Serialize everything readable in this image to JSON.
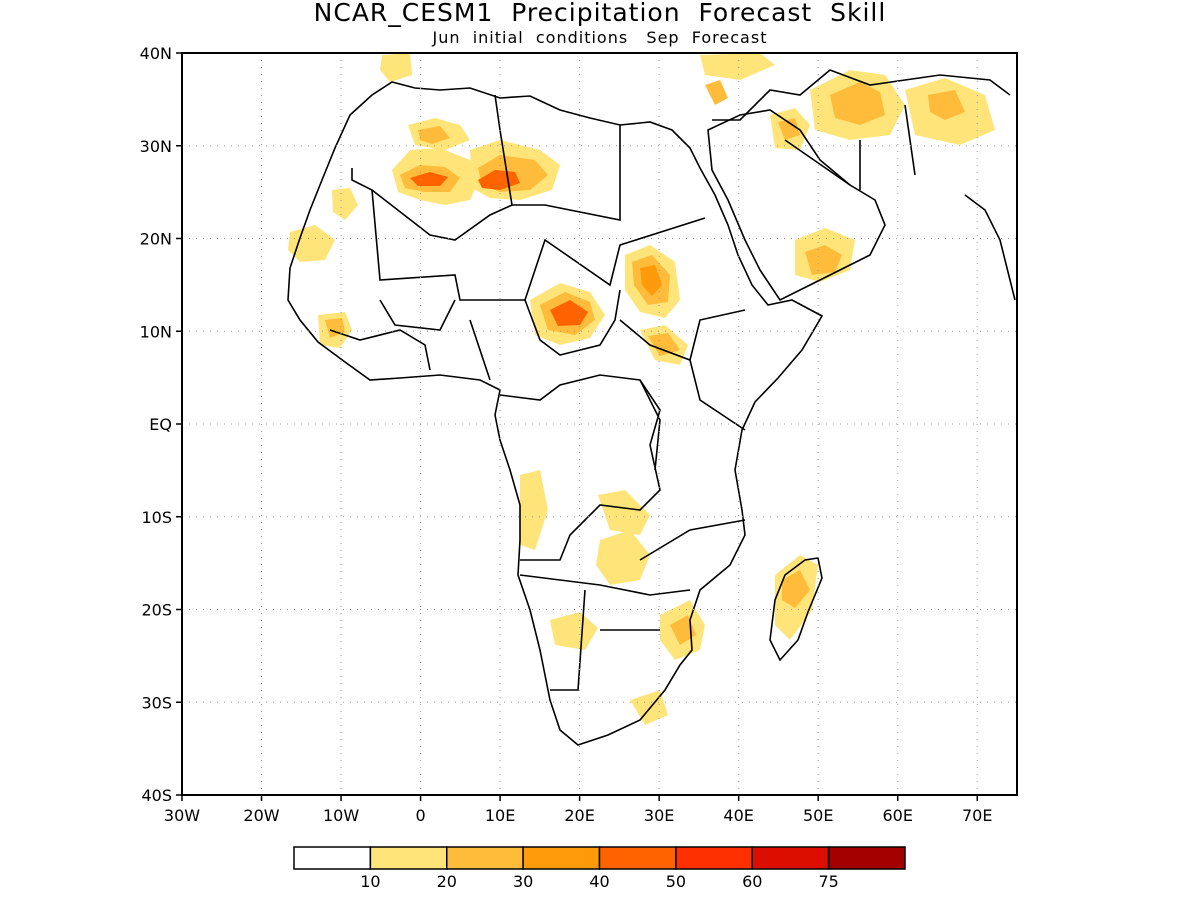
{
  "header": {
    "title": "NCAR_CESM1  Precipitation  Forecast  Skill",
    "subtitle": "Jun  initial  conditions   Sep  Forecast"
  },
  "map": {
    "region": "Africa",
    "lon_range": [
      -30,
      75
    ],
    "lat_range": [
      -40,
      40
    ],
    "x_ticks": [
      "30W",
      "20W",
      "10W",
      "0",
      "10E",
      "20E",
      "30E",
      "40E",
      "50E",
      "60E",
      "70E"
    ],
    "y_ticks": [
      "40N",
      "30N",
      "20N",
      "10N",
      "EQ",
      "10S",
      "20S",
      "30S",
      "40S"
    ],
    "grid": "dotted"
  },
  "legend": {
    "labels": [
      "10",
      "20",
      "30",
      "40",
      "50",
      "60",
      "75"
    ],
    "colors": [
      "#ffffff",
      "#ffe479",
      "#ffbb3a",
      "#ff9a0a",
      "#ff6300",
      "#ff3000",
      "#dc0e00",
      "#a50000"
    ]
  }
}
